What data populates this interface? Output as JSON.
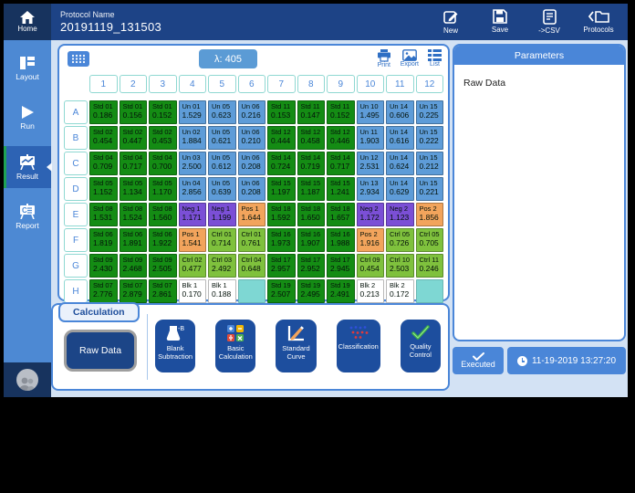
{
  "topbar": {
    "home_label": "Home",
    "protocol_label": "Protocol Name",
    "protocol_name": "20191119_131503",
    "actions": [
      {
        "label": "New"
      },
      {
        "label": "Save"
      },
      {
        "label": "->CSV"
      },
      {
        "label": "Protocols"
      }
    ]
  },
  "sidebar": {
    "items": [
      {
        "label": "Layout",
        "active": false
      },
      {
        "label": "Run",
        "active": false
      },
      {
        "label": "Result",
        "active": true
      },
      {
        "label": "Report",
        "active": false
      }
    ]
  },
  "plate": {
    "wavelength": "λ: 405",
    "tools": [
      {
        "label": "Print"
      },
      {
        "label": "Export"
      },
      {
        "label": "List"
      }
    ],
    "column_headers": [
      "1",
      "2",
      "3",
      "4",
      "5",
      "6",
      "7",
      "8",
      "9",
      "10",
      "11",
      "12"
    ],
    "row_headers": [
      "A",
      "B",
      "C",
      "D",
      "E",
      "F",
      "G",
      "H"
    ],
    "well_colors": {
      "std": "#148c14",
      "un": "#5e9cd8",
      "neg": "#7b4fd6",
      "pos": "#f2a45c",
      "ctrl": "#7fc13d",
      "blk": "#ffffff",
      "empty": "#7ed7d3"
    },
    "rows": [
      {
        "name": "A",
        "wells": [
          {
            "label": "Std 01",
            "value": "0.186",
            "type": "std"
          },
          {
            "label": "Std 01",
            "value": "0.156",
            "type": "std"
          },
          {
            "label": "Std 01",
            "value": "0.152",
            "type": "std"
          },
          {
            "label": "Un 01",
            "value": "1.529",
            "type": "un"
          },
          {
            "label": "Un 05",
            "value": "0.623",
            "type": "un"
          },
          {
            "label": "Un 06",
            "value": "0.216",
            "type": "un"
          },
          {
            "label": "Std 11",
            "value": "0.153",
            "type": "std"
          },
          {
            "label": "Std 11",
            "value": "0.147",
            "type": "std"
          },
          {
            "label": "Std 11",
            "value": "0.152",
            "type": "std"
          },
          {
            "label": "Un 10",
            "value": "1.495",
            "type": "un"
          },
          {
            "label": "Un 14",
            "value": "0.606",
            "type": "un"
          },
          {
            "label": "Un 15",
            "value": "0.225",
            "type": "un"
          }
        ]
      },
      {
        "name": "B",
        "wells": [
          {
            "label": "Std 02",
            "value": "0.454",
            "type": "std"
          },
          {
            "label": "Std 02",
            "value": "0.447",
            "type": "std"
          },
          {
            "label": "Std 02",
            "value": "0.453",
            "type": "std"
          },
          {
            "label": "Un 02",
            "value": "1.884",
            "type": "un"
          },
          {
            "label": "Un 05",
            "value": "0.621",
            "type": "un"
          },
          {
            "label": "Un 06",
            "value": "0.210",
            "type": "un"
          },
          {
            "label": "Std 12",
            "value": "0.444",
            "type": "std"
          },
          {
            "label": "Std 12",
            "value": "0.458",
            "type": "std"
          },
          {
            "label": "Std 12",
            "value": "0.446",
            "type": "std"
          },
          {
            "label": "Un 11",
            "value": "1.903",
            "type": "un"
          },
          {
            "label": "Un 14",
            "value": "0.616",
            "type": "un"
          },
          {
            "label": "Un 15",
            "value": "0.222",
            "type": "un"
          }
        ]
      },
      {
        "name": "C",
        "wells": [
          {
            "label": "Std 04",
            "value": "0.709",
            "type": "std"
          },
          {
            "label": "Std 04",
            "value": "0.717",
            "type": "std"
          },
          {
            "label": "Std 04",
            "value": "0.700",
            "type": "std"
          },
          {
            "label": "Un 03",
            "value": "2.500",
            "type": "un"
          },
          {
            "label": "Un 05",
            "value": "0.612",
            "type": "un"
          },
          {
            "label": "Un 06",
            "value": "0.208",
            "type": "un"
          },
          {
            "label": "Std 14",
            "value": "0.724",
            "type": "std"
          },
          {
            "label": "Std 14",
            "value": "0.719",
            "type": "std"
          },
          {
            "label": "Std 14",
            "value": "0.717",
            "type": "std"
          },
          {
            "label": "Un 12",
            "value": "2.531",
            "type": "un"
          },
          {
            "label": "Un 14",
            "value": "0.624",
            "type": "un"
          },
          {
            "label": "Un 15",
            "value": "0.212",
            "type": "un"
          }
        ]
      },
      {
        "name": "D",
        "wells": [
          {
            "label": "Std 05",
            "value": "1.152",
            "type": "std"
          },
          {
            "label": "Std 05",
            "value": "1.134",
            "type": "std"
          },
          {
            "label": "Std 05",
            "value": "1.170",
            "type": "std"
          },
          {
            "label": "Un 04",
            "value": "2.856",
            "type": "un"
          },
          {
            "label": "Un 05",
            "value": "0.639",
            "type": "un"
          },
          {
            "label": "Un 06",
            "value": "0.208",
            "type": "un"
          },
          {
            "label": "Std 15",
            "value": "1.197",
            "type": "std"
          },
          {
            "label": "Std 15",
            "value": "1.187",
            "type": "std"
          },
          {
            "label": "Std 15",
            "value": "1.241",
            "type": "std"
          },
          {
            "label": "Un 13",
            "value": "2.934",
            "type": "un"
          },
          {
            "label": "Un 14",
            "value": "0.629",
            "type": "un"
          },
          {
            "label": "Un 15",
            "value": "0.221",
            "type": "un"
          }
        ]
      },
      {
        "name": "E",
        "wells": [
          {
            "label": "Std 08",
            "value": "1.531",
            "type": "std"
          },
          {
            "label": "Std 08",
            "value": "1.524",
            "type": "std"
          },
          {
            "label": "Std 08",
            "value": "1.560",
            "type": "std"
          },
          {
            "label": "Neg 1",
            "value": "1.171",
            "type": "neg"
          },
          {
            "label": "Neg 1",
            "value": "1.199",
            "type": "neg"
          },
          {
            "label": "Pos 1",
            "value": "1.644",
            "type": "pos"
          },
          {
            "label": "Std 18",
            "value": "1.592",
            "type": "std"
          },
          {
            "label": "Std 18",
            "value": "1.650",
            "type": "std"
          },
          {
            "label": "Std 18",
            "value": "1.657",
            "type": "std"
          },
          {
            "label": "Neg 2",
            "value": "1.172",
            "type": "neg"
          },
          {
            "label": "Neg 2",
            "value": "1.123",
            "type": "neg"
          },
          {
            "label": "Pos 2",
            "value": "1.856",
            "type": "pos"
          }
        ]
      },
      {
        "name": "F",
        "wells": [
          {
            "label": "Std 06",
            "value": "1.819",
            "type": "std"
          },
          {
            "label": "Std 06",
            "value": "1.891",
            "type": "std"
          },
          {
            "label": "Std 06",
            "value": "1.922",
            "type": "std"
          },
          {
            "label": "Pos 1",
            "value": "1.541",
            "type": "pos"
          },
          {
            "label": "Ctrl 01",
            "value": "0.714",
            "type": "ctrl"
          },
          {
            "label": "Ctrl 01",
            "value": "0.761",
            "type": "ctrl"
          },
          {
            "label": "Std 16",
            "value": "1.973",
            "type": "std"
          },
          {
            "label": "Std 16",
            "value": "1.907",
            "type": "std"
          },
          {
            "label": "Std 16",
            "value": "1.988",
            "type": "std"
          },
          {
            "label": "Pos 2",
            "value": "1.916",
            "type": "pos"
          },
          {
            "label": "Ctrl 05",
            "value": "0.726",
            "type": "ctrl"
          },
          {
            "label": "Ctrl 05",
            "value": "0.705",
            "type": "ctrl"
          }
        ]
      },
      {
        "name": "G",
        "wells": [
          {
            "label": "Std 09",
            "value": "2.430",
            "type": "std"
          },
          {
            "label": "Std 09",
            "value": "2.468",
            "type": "std"
          },
          {
            "label": "Std 09",
            "value": "2.505",
            "type": "std"
          },
          {
            "label": "Ctrl 02",
            "value": "0.477",
            "type": "ctrl"
          },
          {
            "label": "Ctrl 03",
            "value": "2.492",
            "type": "ctrl"
          },
          {
            "label": "Ctrl 04",
            "value": "0.648",
            "type": "ctrl"
          },
          {
            "label": "Std 17",
            "value": "2.957",
            "type": "std"
          },
          {
            "label": "Std 17",
            "value": "2.952",
            "type": "std"
          },
          {
            "label": "Std 17",
            "value": "2.945",
            "type": "std"
          },
          {
            "label": "Ctrl 09",
            "value": "0.454",
            "type": "ctrl"
          },
          {
            "label": "Ctrl 10",
            "value": "2.503",
            "type": "ctrl"
          },
          {
            "label": "Ctrl 11",
            "value": "0.246",
            "type": "ctrl"
          }
        ]
      },
      {
        "name": "H",
        "wells": [
          {
            "label": "Std 07",
            "value": "2.776",
            "type": "std"
          },
          {
            "label": "Std 07",
            "value": "2.879",
            "type": "std"
          },
          {
            "label": "Std 07",
            "value": "2.861",
            "type": "std"
          },
          {
            "label": "Blk 1",
            "value": "0.170",
            "type": "blk"
          },
          {
            "label": "Blk 1",
            "value": "0.188",
            "type": "blk"
          },
          {
            "label": "",
            "value": "",
            "type": "empty"
          },
          {
            "label": "Std 19",
            "value": "2.507",
            "type": "std"
          },
          {
            "label": "Std 19",
            "value": "2.495",
            "type": "std"
          },
          {
            "label": "Std 19",
            "value": "2.491",
            "type": "std"
          },
          {
            "label": "Blk 2",
            "value": "0.213",
            "type": "blk"
          },
          {
            "label": "Blk 2",
            "value": "0.172",
            "type": "blk"
          },
          {
            "label": "",
            "value": "",
            "type": "empty"
          }
        ]
      }
    ]
  },
  "calculation": {
    "tab_label": "Calculation",
    "selected_label": "Raw Data",
    "buttons": [
      {
        "label": "Blank Subtraction"
      },
      {
        "label": "Basic Calculation"
      },
      {
        "label": "Standard Curve"
      },
      {
        "label": "Classification"
      },
      {
        "label": "Quality Control"
      }
    ]
  },
  "parameters": {
    "title": "Parameters",
    "content": "Raw Data"
  },
  "status": {
    "executed_label": "Executed",
    "timestamp": "11-19-2019 13:27:20"
  }
}
